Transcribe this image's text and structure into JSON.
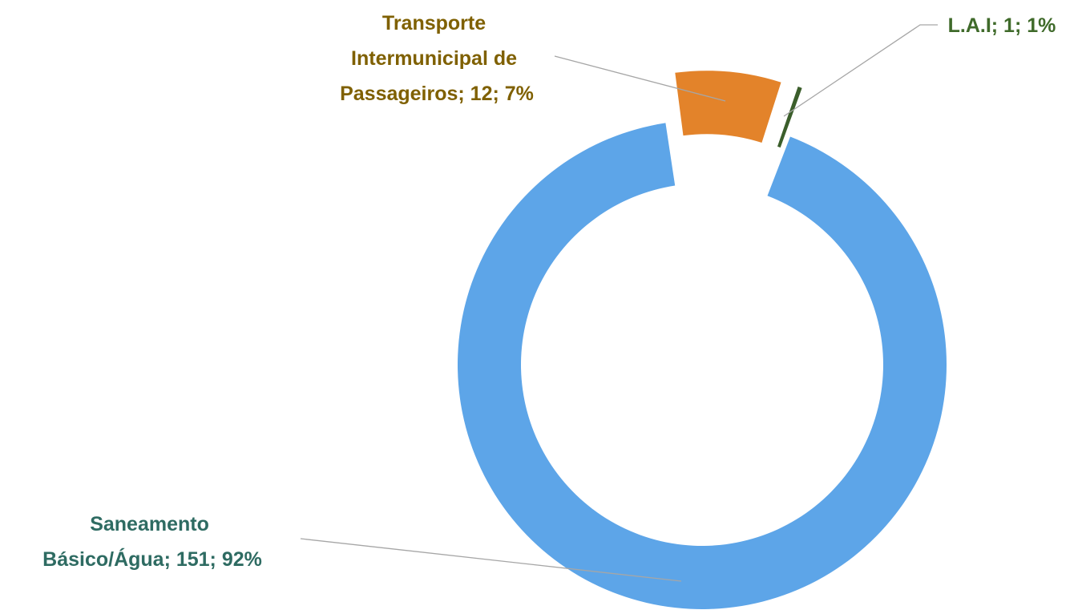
{
  "chart_data": {
    "type": "donut",
    "categories": [
      "Transporte Intermunicipal de Passageiros",
      "L.A.I",
      "Saneamento Básico/Água"
    ],
    "values": [
      12,
      1,
      151
    ],
    "value_labels": [
      "Transporte Intermunicipal de Passageiros; 12; 7%",
      "L.A.I; 1; 1%",
      "Saneamento Básico/Água; 151; 92%"
    ],
    "colors": [
      "#e3832a",
      "#3b5e2b",
      "#5da5e8"
    ],
    "label_colors": [
      "#7f6000",
      "#3f6a2a",
      "#2e6b62"
    ]
  }
}
